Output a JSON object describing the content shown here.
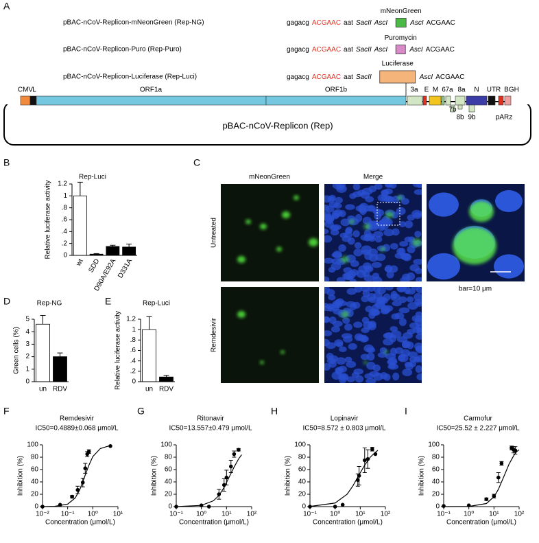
{
  "panels": [
    "A",
    "B",
    "C",
    "D",
    "E",
    "F",
    "G",
    "H",
    "I"
  ],
  "diagram": {
    "constructs": [
      {
        "name": "pBAC-nCoV-Replicon-mNeonGreen (Rep-NG)",
        "seq": [
          "gagacg",
          "ACGAAC",
          "aat",
          "SacII",
          "AscI"
        ],
        "gene": "mNeonGreen",
        "color": "#4cb848",
        "tail": [
          "AscI",
          "ACGAAC"
        ]
      },
      {
        "name": "pBAC-nCoV-Replicon-Puro (Rep-Puro)",
        "seq": [
          "gagacg",
          "ACGAAC",
          "aat",
          "SacII",
          "AscI"
        ],
        "gene": "Puromycin",
        "color": "#d98ac8",
        "tail": [
          "AscI",
          "ACGAAC"
        ]
      },
      {
        "name": "pBAC-nCoV-Replicon-Luciferase (Rep-Luci)",
        "seq": [
          "gagacg",
          "ACGAAC",
          "aat",
          "SacII"
        ],
        "gene": "Luciferase",
        "color": "#f5b57a",
        "tail": [
          "AscI",
          "ACGAAC"
        ]
      }
    ],
    "genome_labels": [
      "CMV",
      "L",
      "ORF1a",
      "ORF1b",
      "3a",
      "E",
      "M",
      "6",
      "7a",
      "8a",
      "7b",
      "8b",
      "9b",
      "N",
      "UTR",
      "pARz",
      "BGH"
    ],
    "title": "pBAC-nCoV-Replicon (Rep)"
  },
  "images": {
    "columns": [
      "mNeonGreen",
      "Merge"
    ],
    "rows": [
      "Untreated",
      "Remdesivir"
    ],
    "scale_bar": "bar=10 μm"
  },
  "chart_data": [
    {
      "type": "bar",
      "title": "Rep-Luci",
      "y_label": "Relative luciferase activity",
      "categories": [
        "wt",
        "SDD",
        "D90A/E92A",
        "D331A"
      ],
      "values": [
        1.0,
        0.02,
        0.15,
        0.14
      ],
      "errors": [
        0.23,
        0.01,
        0.02,
        0.05
      ],
      "colors": [
        "#ffffff",
        "#000000",
        "#000000",
        "#000000"
      ],
      "ylim": [
        0,
        1.2
      ],
      "yticks": [
        0,
        {
          "value": 0.2,
          "label": ".2"
        },
        {
          "value": 0.4,
          "label": ".4"
        },
        {
          "value": 0.6,
          "label": ".6"
        },
        {
          "value": 0.8,
          "label": ".8"
        },
        1,
        1.2
      ]
    },
    {
      "type": "bar",
      "title": "Rep-NG",
      "y_label": "Green cells (%)",
      "categories": [
        "un",
        "RDV"
      ],
      "values": [
        4.6,
        2.0
      ],
      "errors": [
        0.7,
        0.3
      ],
      "colors": [
        "#ffffff",
        "#000000"
      ],
      "ylim": [
        0,
        5
      ],
      "yticks": [
        0,
        1,
        2,
        3,
        4,
        5
      ]
    },
    {
      "type": "bar",
      "title": "Rep-Luci",
      "y_label": "Relative luciferase activity",
      "categories": [
        "un",
        "RDV"
      ],
      "values": [
        1.0,
        0.09
      ],
      "errors": [
        0.25,
        0.03
      ],
      "colors": [
        "#ffffff",
        "#000000"
      ],
      "ylim": [
        0,
        1.2
      ],
      "yticks": [
        0,
        {
          "value": 0.2,
          "label": ".2"
        },
        {
          "value": 0.4,
          "label": ".4"
        },
        {
          "value": 0.6,
          "label": ".6"
        },
        {
          "value": 0.8,
          "label": ".8"
        },
        1,
        1.2
      ]
    },
    {
      "type": "scatter",
      "title": "Remdesivir",
      "subtitle": "IC50=0.4889±0.068 μmol/L",
      "x_label": "Concentration (μmol/L)",
      "y_label": "Inhibition (%)",
      "x": [
        0.01,
        0.05,
        0.15,
        0.25,
        0.4,
        0.5,
        0.6,
        0.7,
        5
      ],
      "values": [
        0,
        3,
        16,
        27,
        39,
        62,
        85,
        89,
        98
      ],
      "errors": [
        0,
        0,
        2,
        6,
        7,
        8,
        4,
        3,
        0
      ],
      "fit": {
        "x": [
          0.01,
          0.03,
          0.1,
          0.2,
          0.3,
          0.4889,
          0.7,
          1,
          2,
          5
        ],
        "values": [
          0,
          0.4,
          4,
          14,
          27,
          50,
          67,
          81,
          94,
          99
        ]
      },
      "xscale": "log",
      "color": "#000000",
      "xlim": [
        0.01,
        10
      ],
      "xticks": [
        {
          "value": 0.01,
          "label": "10⁻²"
        },
        {
          "value": 0.1,
          "label": "10⁻¹"
        },
        {
          "value": 1,
          "label": "10⁰"
        },
        {
          "value": 10,
          "label": "10¹"
        }
      ],
      "ylim": [
        0,
        100
      ],
      "yticks": [
        0,
        20,
        40,
        60,
        80,
        100
      ]
    },
    {
      "type": "scatter",
      "title": "Ritonavir",
      "subtitle": "IC50=13.557±0.479 μmol/L",
      "x_label": "Concentration (μmol/L)",
      "y_label": "Inhibition (%)",
      "x": [
        0.1,
        1,
        2,
        5,
        8,
        10,
        15,
        20,
        30
      ],
      "values": [
        0,
        2,
        0,
        20,
        35,
        47,
        65,
        85,
        92
      ],
      "errors": [
        0,
        0,
        0,
        8,
        10,
        12,
        10,
        5,
        2
      ],
      "fit": {
        "x": [
          0.1,
          1,
          3,
          5,
          8,
          13.557,
          20,
          30,
          40
        ],
        "values": [
          0.06,
          2,
          9.4,
          18,
          31,
          50,
          64,
          77,
          84
        ]
      },
      "xscale": "log",
      "color": "#000000",
      "xlim": [
        0.1,
        100
      ],
      "xticks": [
        {
          "value": 0.1,
          "label": "10⁻¹"
        },
        {
          "value": 1,
          "label": "10⁰"
        },
        {
          "value": 10,
          "label": "10¹"
        },
        {
          "value": 100,
          "label": "10²"
        }
      ],
      "ylim": [
        0,
        100
      ],
      "yticks": [
        0,
        20,
        40,
        60,
        80,
        100
      ]
    },
    {
      "type": "scatter",
      "title": "Lopinavir",
      "subtitle": "IC50=8.572 ± 0.803 μmol/L",
      "x_label": "Concentration (μmol/L)",
      "y_label": "Inhibition (%)",
      "x": [
        0.1,
        1,
        2,
        8,
        9,
        15,
        20,
        30,
        40
      ],
      "values": [
        0,
        0,
        3,
        43,
        50,
        75,
        77,
        93,
        85
      ],
      "errors": [
        0,
        0,
        0,
        10,
        15,
        20,
        15,
        3,
        0
      ],
      "fit": {
        "x": [
          0.1,
          1,
          3,
          5,
          8.572,
          15,
          25,
          40,
          50
        ],
        "values": [
          0.3,
          5.8,
          20,
          33,
          50,
          67,
          80,
          88,
          91
        ]
      },
      "xscale": "log",
      "color": "#000000",
      "xlim": [
        0.1,
        100
      ],
      "xticks": [
        {
          "value": 0.1,
          "label": "10⁻¹"
        },
        {
          "value": 1,
          "label": "10⁰"
        },
        {
          "value": 10,
          "label": "10¹"
        },
        {
          "value": 100,
          "label": "10²"
        }
      ],
      "ylim": [
        0,
        100
      ],
      "yticks": [
        0,
        20,
        40,
        60,
        80,
        100
      ]
    },
    {
      "type": "scatter",
      "title": "Carmofur",
      "subtitle": "IC50=25.52 ± 2.227 μmol/L",
      "x_label": "Concentration (μmol/L)",
      "y_label": "Inhibition (%)",
      "x": [
        0.1,
        1,
        5,
        10,
        15,
        20,
        50,
        60,
        70
      ],
      "values": [
        1,
        2,
        12,
        17,
        47,
        70,
        95,
        92,
        91
      ],
      "errors": [
        0,
        0,
        2,
        3,
        8,
        3,
        3,
        5,
        6
      ],
      "fit": {
        "x": [
          0.1,
          1,
          5,
          10,
          15,
          25.52,
          40,
          60,
          80,
          100
        ],
        "values": [
          0,
          0.3,
          5,
          16,
          28,
          50,
          69,
          82,
          89,
          92
        ]
      },
      "xscale": "log",
      "color": "#000000",
      "xlim": [
        0.1,
        100
      ],
      "xticks": [
        {
          "value": 0.1,
          "label": "10⁻¹"
        },
        {
          "value": 1,
          "label": "10⁰"
        },
        {
          "value": 10,
          "label": "10¹"
        },
        {
          "value": 100,
          "label": "10²"
        }
      ],
      "ylim": [
        0,
        100
      ],
      "yticks": [
        0,
        20,
        40,
        60,
        80,
        100
      ]
    }
  ]
}
